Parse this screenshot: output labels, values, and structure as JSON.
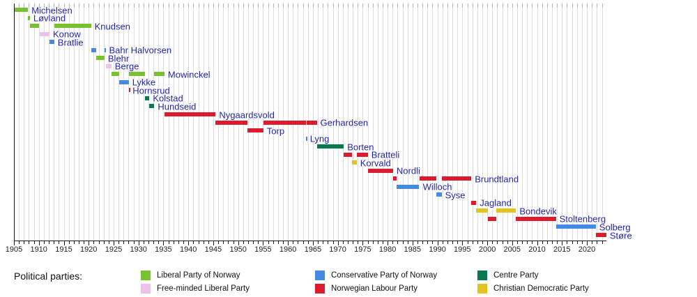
{
  "chart_data": {
    "type": "timeline",
    "x_axis": {
      "min": 1905,
      "max": 2023.9,
      "minor_tick_years": 1,
      "label_years": [
        1905,
        1910,
        1915,
        1920,
        1925,
        1930,
        1935,
        1940,
        1945,
        1950,
        1955,
        1960,
        1965,
        1970,
        1975,
        1980,
        1985,
        1990,
        1995,
        2000,
        2005,
        2010,
        2015,
        2020
      ]
    },
    "colors": {
      "pm_label_text": "#2323ad",
      "axis": "#1a1a1a",
      "gridline": "#dedede"
    },
    "parties": [
      {
        "id": "liberal",
        "name": "Liberal Party of Norway",
        "color": "#77c22d"
      },
      {
        "id": "free_minded",
        "name": "Free-minded Liberal Party",
        "color": "#edc2e9"
      },
      {
        "id": "conservative",
        "name": "Conservative Party of Norway",
        "color": "#4489e4"
      },
      {
        "id": "labour",
        "name": "Norwegian Labour Party",
        "color": "#dd1b2e"
      },
      {
        "id": "centre",
        "name": "Centre Party",
        "color": "#077a50"
      },
      {
        "id": "christian_democratic",
        "name": "Christian Democratic Party",
        "color": "#e2c41c"
      }
    ],
    "legend": {
      "title": "Political parties:",
      "columns": [
        [
          "liberal",
          "free_minded"
        ],
        [
          "conservative",
          "labour"
        ],
        [
          "centre",
          "christian_democratic"
        ]
      ]
    },
    "prime_ministers": [
      {
        "name": "Michelsen",
        "party": "liberal",
        "terms": [
          [
            1905.17,
            1907.82
          ]
        ]
      },
      {
        "name": "Løvland",
        "party": "liberal",
        "terms": [
          [
            1907.82,
            1908.21
          ]
        ]
      },
      {
        "name": "Knudsen",
        "party": "liberal",
        "terms": [
          [
            1908.21,
            1910.1
          ],
          [
            1913.08,
            1920.47
          ]
        ]
      },
      {
        "name": "Konow",
        "party": "free_minded",
        "terms": [
          [
            1910.1,
            1912.14
          ]
        ]
      },
      {
        "name": "Bratlie",
        "party": "conservative",
        "terms": [
          [
            1912.14,
            1913.08
          ]
        ]
      },
      {
        "name": "Bahr Halvorsen",
        "party": "conservative",
        "terms": [
          [
            1920.47,
            1921.47
          ],
          [
            1923.17,
            1923.4
          ]
        ]
      },
      {
        "name": "Blehr",
        "party": "liberal",
        "terms": [
          [
            1921.47,
            1923.17
          ]
        ]
      },
      {
        "name": "Berge",
        "party": "free_minded",
        "terms": [
          [
            1923.4,
            1924.56
          ]
        ]
      },
      {
        "name": "Mowinckel",
        "party": "liberal",
        "terms": [
          [
            1924.56,
            1926.17
          ],
          [
            1928.12,
            1931.35
          ],
          [
            1933.17,
            1935.2
          ]
        ]
      },
      {
        "name": "Lykke",
        "party": "conservative",
        "terms": [
          [
            1926.17,
            1928.04
          ]
        ]
      },
      {
        "name": "Hornsrud",
        "party": "labour",
        "terms": [
          [
            1928.04,
            1928.12
          ]
        ]
      },
      {
        "name": "Kolstad",
        "party": "centre",
        "terms": [
          [
            1931.35,
            1932.19
          ]
        ]
      },
      {
        "name": "Hundseid",
        "party": "centre",
        "terms": [
          [
            1932.19,
            1933.17
          ]
        ]
      },
      {
        "name": "Nygaardsvold",
        "party": "labour",
        "terms": [
          [
            1935.2,
            1945.48
          ]
        ]
      },
      {
        "name": "Gerhardsen",
        "party": "labour",
        "terms": [
          [
            1945.48,
            1951.87
          ],
          [
            1955.05,
            1963.63
          ],
          [
            1963.71,
            1965.79
          ]
        ]
      },
      {
        "name": "Torp",
        "party": "labour",
        "terms": [
          [
            1951.87,
            1955.05
          ]
        ]
      },
      {
        "name": "Lyng",
        "party": "conservative",
        "terms": [
          [
            1963.63,
            1963.71
          ]
        ]
      },
      {
        "name": "Borten",
        "party": "centre",
        "terms": [
          [
            1965.79,
            1971.2
          ]
        ]
      },
      {
        "name": "Bratteli",
        "party": "labour",
        "terms": [
          [
            1971.2,
            1972.79
          ],
          [
            1973.79,
            1976.04
          ]
        ]
      },
      {
        "name": "Korvald",
        "party": "christian_democratic",
        "terms": [
          [
            1972.79,
            1973.79
          ]
        ]
      },
      {
        "name": "Nordli",
        "party": "labour",
        "terms": [
          [
            1976.04,
            1981.09
          ]
        ]
      },
      {
        "name": "Brundtland",
        "party": "labour",
        "terms": [
          [
            1981.09,
            1981.78
          ],
          [
            1986.36,
            1989.79
          ],
          [
            1990.84,
            1996.8
          ]
        ]
      },
      {
        "name": "Willoch",
        "party": "conservative",
        "terms": [
          [
            1981.78,
            1986.36
          ]
        ]
      },
      {
        "name": "Syse",
        "party": "conservative",
        "terms": [
          [
            1989.79,
            1990.84
          ]
        ]
      },
      {
        "name": "Jagland",
        "party": "labour",
        "terms": [
          [
            1996.8,
            1997.8
          ]
        ]
      },
      {
        "name": "Bondevik",
        "party": "christian_democratic",
        "terms": [
          [
            1997.8,
            2000.19
          ],
          [
            2001.79,
            2005.79
          ]
        ]
      },
      {
        "name": "Stoltenberg",
        "party": "labour",
        "terms": [
          [
            2000.19,
            2001.79
          ],
          [
            2005.79,
            2013.79
          ]
        ]
      },
      {
        "name": "Solberg",
        "party": "conservative",
        "terms": [
          [
            2013.79,
            2021.79
          ]
        ]
      },
      {
        "name": "Støre",
        "party": "labour",
        "terms": [
          [
            2021.79,
            2023.9
          ]
        ]
      }
    ]
  }
}
